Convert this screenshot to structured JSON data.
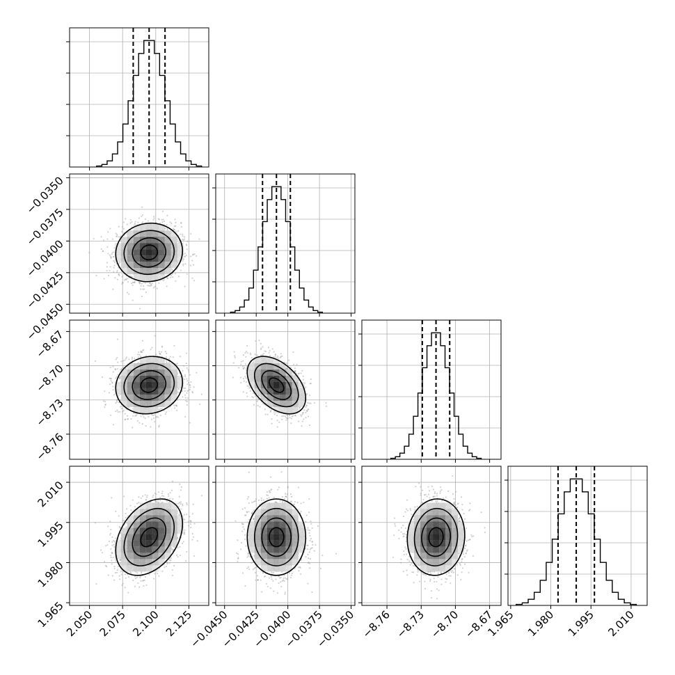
{
  "chart_data": {
    "type": "corner",
    "series_color": "#000000",
    "grid": true,
    "params": [
      {
        "ticks": [
          2.05,
          2.075,
          2.1,
          2.125
        ],
        "tick_labels": [
          "2.050",
          "2.075",
          "2.100",
          "2.125"
        ],
        "range": [
          2.035,
          2.14
        ],
        "mean": 2.095,
        "std": 0.012,
        "quantiles": [
          2.083,
          2.095,
          2.107
        ]
      },
      {
        "ticks": [
          -0.045,
          -0.0425,
          -0.04,
          -0.0375,
          -0.035
        ],
        "tick_labels": [
          "−0.0450",
          "−0.0425",
          "−0.0400",
          "−0.0375",
          "−0.0350"
        ],
        "range": [
          -0.0457,
          -0.0347
        ],
        "mean": -0.0409,
        "std": 0.0011,
        "quantiles": [
          -0.042,
          -0.0409,
          -0.0398
        ]
      },
      {
        "ticks": [
          -8.76,
          -8.73,
          -8.7,
          -8.67
        ],
        "tick_labels": [
          "−8.76",
          "−8.73",
          "−8.70",
          "−8.67"
        ],
        "range": [
          -8.782,
          -8.66
        ],
        "mean": -8.717,
        "std": 0.012,
        "quantiles": [
          -8.729,
          -8.717,
          -8.705
        ]
      },
      {
        "ticks": [
          1.965,
          1.98,
          1.995,
          2.01
        ],
        "tick_labels": [
          "1.965",
          "1.980",
          "1.995",
          "2.010"
        ],
        "range": [
          1.964,
          2.016
        ],
        "mean": 1.9895,
        "std": 0.0068,
        "quantiles": [
          1.9827,
          1.9895,
          1.9963
        ]
      }
    ],
    "histograms": [
      {
        "param": 0,
        "bins": 20,
        "peak_bin": 10
      },
      {
        "param": 1,
        "bins": 20,
        "peak_bin": 10
      },
      {
        "param": 2,
        "bins": 20,
        "peak_bin": 10
      },
      {
        "param": 3,
        "bins": 20,
        "peak_bin": 10
      }
    ],
    "pairs": [
      {
        "x": 0,
        "y": 1,
        "correlation": 0.05
      },
      {
        "x": 0,
        "y": 2,
        "correlation": 0.1
      },
      {
        "x": 1,
        "y": 2,
        "correlation": -0.45
      },
      {
        "x": 0,
        "y": 3,
        "correlation": 0.35
      },
      {
        "x": 1,
        "y": 3,
        "correlation": 0.0
      },
      {
        "x": 2,
        "y": 3,
        "correlation": 0.05
      }
    ],
    "contour_levels_sigma": [
      0.5,
      1.0,
      1.5,
      2.0
    ]
  }
}
